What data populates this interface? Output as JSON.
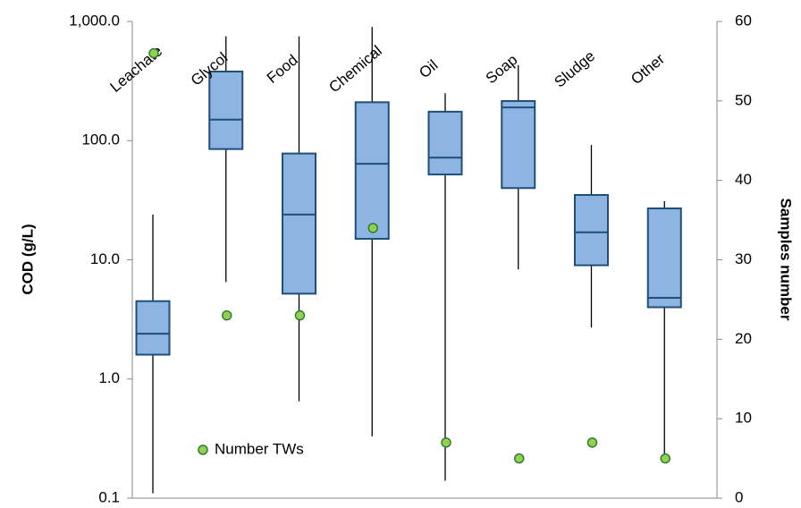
{
  "chart_data": {
    "type": "box",
    "y_label": "COD (g/L)",
    "y2_label": "Samples number",
    "categories": [
      "Leachate",
      "Glycol",
      "Food",
      "Chemical",
      "Oil",
      "Soap",
      "Sludge",
      "Other"
    ],
    "min": [
      0.11,
      6.5,
      0.65,
      0.33,
      0.14,
      8.3,
      2.7,
      0.2
    ],
    "q1": [
      1.6,
      85,
      5.2,
      15,
      52,
      40,
      9,
      4
    ],
    "median": [
      2.4,
      150,
      24,
      64,
      72,
      190,
      17,
      4.8
    ],
    "q3": [
      4.5,
      380,
      78,
      210,
      175,
      215,
      35,
      27
    ],
    "max": [
      24,
      750,
      750,
      900,
      250,
      430,
      92,
      31
    ],
    "box_color": "#8eb4e3",
    "box_edge": "#1f4e79",
    "series": [
      {
        "name": "Number TWs",
        "color": "#92d050",
        "values": [
          56,
          23,
          23,
          34,
          7,
          5,
          7,
          5
        ],
        "axis": "y2"
      }
    ],
    "ylim": [
      0.1,
      1000
    ],
    "log_y": true,
    "yticks": [
      {
        "value": 0.1,
        "label": "0.1"
      },
      {
        "value": 1,
        "label": "1.0"
      },
      {
        "value": 10,
        "label": "10.0"
      },
      {
        "value": 100,
        "label": "100.0"
      },
      {
        "value": 1000,
        "label": "1,000.0"
      }
    ],
    "y2lim": [
      0,
      60
    ],
    "y2ticks": [
      0,
      10,
      20,
      30,
      40,
      50,
      60
    ]
  }
}
